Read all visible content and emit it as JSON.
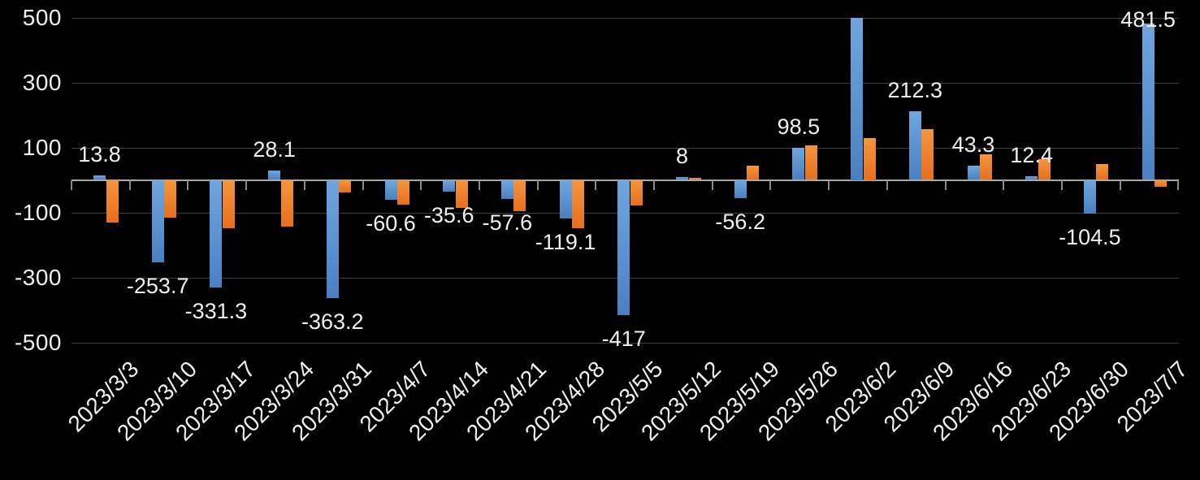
{
  "chart_data": {
    "type": "bar",
    "title": "",
    "legend_position": "none",
    "grid": true,
    "categories": [
      "2023/3/3",
      "2023/3/10",
      "2023/3/17",
      "2023/3/24",
      "2023/3/31",
      "2023/4/7",
      "2023/4/14",
      "2023/4/21",
      "2023/4/28",
      "2023/5/5",
      "2023/5/12",
      "2023/5/19",
      "2023/5/26",
      "2023/6/2",
      "2023/6/9",
      "2023/6/16",
      "2023/6/23",
      "2023/6/30",
      "2023/7/7"
    ],
    "series": [
      {
        "name": "series-1-blue",
        "color": "#5b9bd5",
        "values": [
          13.8,
          -253.7,
          -331.3,
          28.1,
          -363.2,
          -60.6,
          -35.6,
          -57.6,
          -119.1,
          -417,
          8,
          -56.2,
          98.5,
          500,
          212.3,
          43.3,
          12.4,
          -104.5,
          481.5
        ],
        "data_labels": [
          "13.8",
          "-253.7",
          "-331.3",
          "28.1",
          "-363.2",
          "-60.6",
          "-35.6",
          "-57.6",
          "-119.1",
          "-417",
          "8",
          "-56.2",
          "98.5",
          "",
          "212.3",
          "43.3",
          "12.4",
          "-104.5",
          "481.5"
        ]
      },
      {
        "name": "series-2-orange",
        "color": "#ed7d31",
        "values": [
          -130,
          -116,
          -148,
          -143,
          -38,
          -75,
          -87,
          -97,
          -148,
          -79,
          6,
          44,
          106,
          130,
          156,
          79,
          64,
          48,
          -22
        ],
        "data_labels": [
          "",
          "",
          "",
          "",
          "",
          "",
          "",
          "",
          "",
          "",
          "",
          "",
          "",
          "",
          "",
          "",
          "",
          "",
          ""
        ]
      }
    ],
    "y_axis": {
      "tick_labels": [
        "500",
        "300",
        "100",
        "-100",
        "-300",
        "-500"
      ],
      "tick_values": [
        500,
        300,
        100,
        -100,
        -300,
        -500
      ],
      "min": -500,
      "max": 500
    },
    "colors": {
      "background": "#000000",
      "text": "#f0efed",
      "gridline": "#3e3e3e",
      "axis_line": "#a9a9a9",
      "tick_mark": "#8a8a8a"
    }
  }
}
